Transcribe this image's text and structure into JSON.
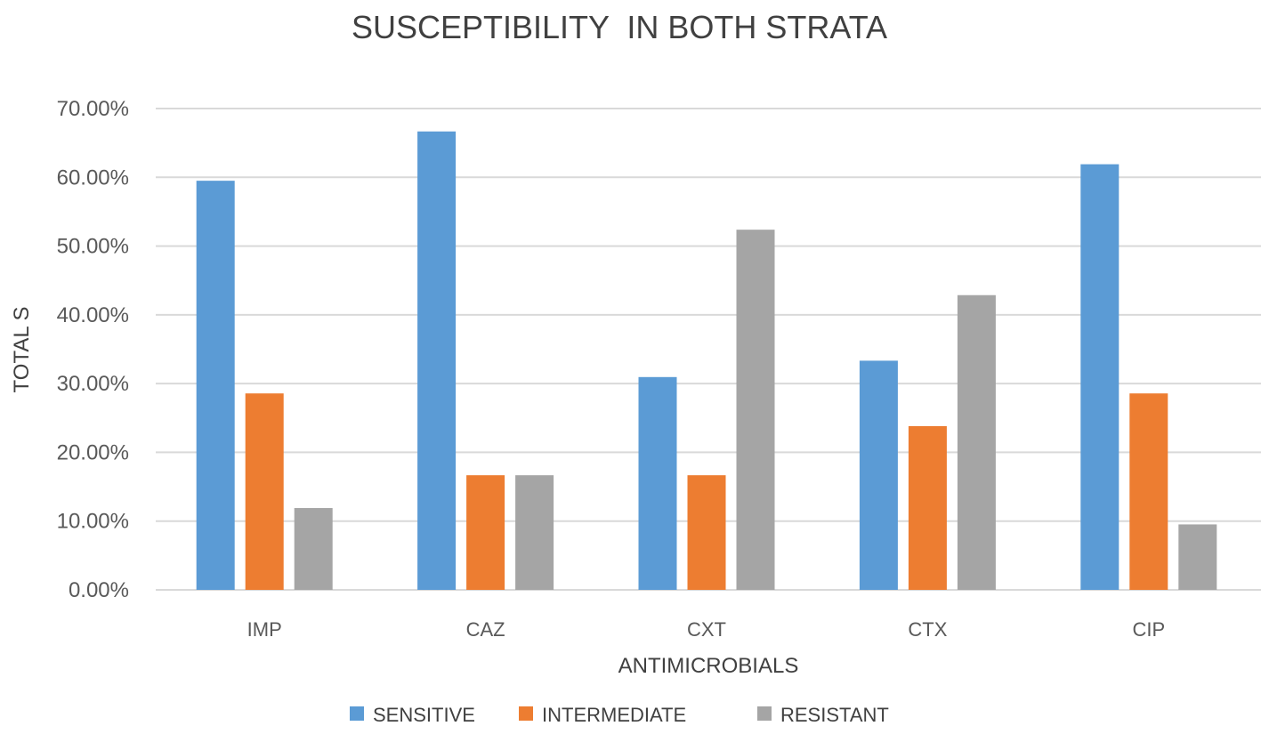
{
  "chart_data": {
    "type": "bar",
    "title": "SUSCEPTIBILITY  IN BOTH STRATA",
    "xlabel": "ANTIMICROBIALS",
    "ylabel": "TOTAL S",
    "categories": [
      "IMP",
      "CAZ",
      "CXT",
      "CTX",
      "CIP"
    ],
    "ylim": [
      0,
      70
    ],
    "yticks": [
      0,
      10,
      20,
      30,
      40,
      50,
      60,
      70
    ],
    "ytick_labels": [
      "0.00%",
      "10.00%",
      "20.00%",
      "30.00%",
      "40.00%",
      "50.00%",
      "60.00%",
      "70.00%"
    ],
    "grid": true,
    "legend_position": "bottom",
    "series": [
      {
        "name": "SENSITIVE",
        "color": "#5b9bd5",
        "values": [
          59.5,
          66.67,
          30.95,
          33.33,
          61.9
        ]
      },
      {
        "name": "INTERMEDIATE",
        "color": "#ed7d31",
        "values": [
          28.57,
          16.67,
          16.67,
          23.81,
          28.57
        ]
      },
      {
        "name": "RESISTANT",
        "color": "#a5a5a5",
        "values": [
          11.9,
          16.67,
          52.38,
          42.86,
          9.52
        ]
      }
    ]
  }
}
